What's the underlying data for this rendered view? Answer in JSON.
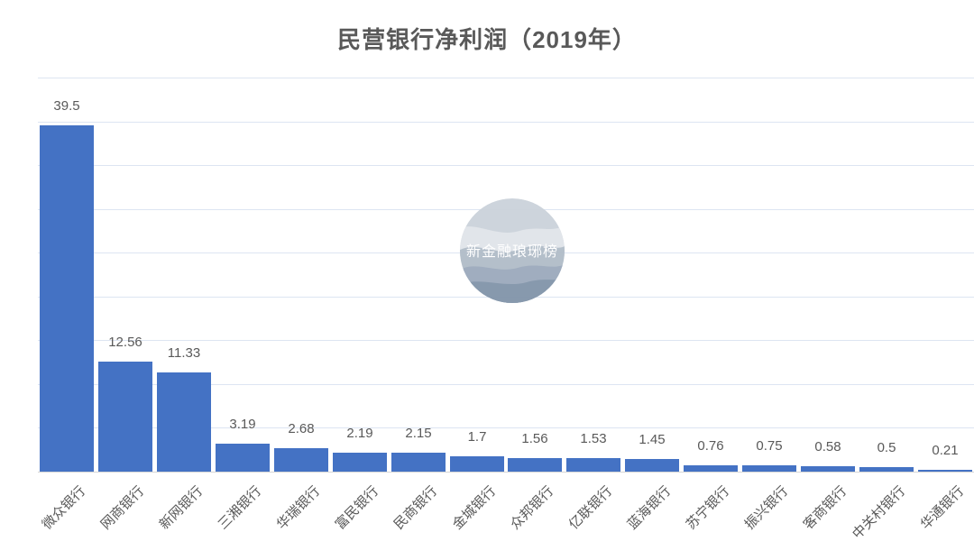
{
  "chart_data": {
    "type": "bar",
    "title": "民营银行净利润（2019年）",
    "categories": [
      "微众银行",
      "网商银行",
      "新网银行",
      "三湘银行",
      "华瑞银行",
      "富民银行",
      "民商银行",
      "金城银行",
      "众邦银行",
      "亿联银行",
      "蓝海银行",
      "苏宁银行",
      "振兴银行",
      "客商银行",
      "中关村银行",
      "华通银行"
    ],
    "values": [
      39.5,
      12.56,
      11.33,
      3.19,
      2.68,
      2.19,
      2.15,
      1.7,
      1.56,
      1.53,
      1.45,
      0.76,
      0.75,
      0.58,
      0.5,
      0.21
    ],
    "value_labels": [
      "39.5",
      "12.56",
      "11.33",
      "3.19",
      "2.68",
      "2.19",
      "2.15",
      "1.7",
      "1.56",
      "1.53",
      "1.45",
      "0.76",
      "0.75",
      "0.58",
      "0.5",
      "0.21"
    ],
    "xlabel": "",
    "ylabel": "",
    "ylim": [
      0,
      45
    ],
    "gridline_step": 5,
    "grid": true,
    "legend_position": "none",
    "bar_color": "#4472C4",
    "gridline_color": "#dde5f2",
    "axis_line_color": "#d6d6d6",
    "label_color": "#595959",
    "title_color": "#595959"
  },
  "watermark": {
    "text": "新金融琅琊榜",
    "layer_colors": [
      "#ccd3db",
      "#e1e5ea",
      "#b2bdc9",
      "#9dabbd",
      "#8496ab"
    ],
    "text_color": "#ffffff"
  }
}
